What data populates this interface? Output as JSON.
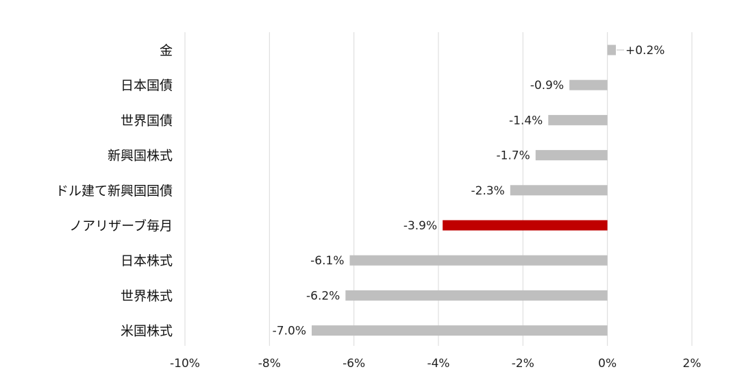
{
  "chart_data": {
    "type": "bar",
    "orientation": "horizontal",
    "categories": [
      "金",
      "日本国債",
      "世界国債",
      "新興国株式",
      "ドル建て新興国国債",
      "ノアリザーブ毎月",
      "日本株式",
      "世界株式",
      "米国株式"
    ],
    "values": [
      0.2,
      -0.9,
      -1.4,
      -1.7,
      -2.3,
      -3.9,
      -6.1,
      -6.2,
      -7.0
    ],
    "value_labels": [
      "+0.2%",
      "-0.9%",
      "-1.4%",
      "-1.7%",
      "-2.3%",
      "-3.9%",
      "-6.1%",
      "-6.2%",
      "-7.0%"
    ],
    "highlight_index": 5,
    "colors": {
      "default": "#bfbfbf",
      "highlight": "#c00000"
    },
    "xlim": [
      -10,
      2
    ],
    "xticks": [
      -10,
      -8,
      -6,
      -4,
      -2,
      0,
      2
    ],
    "xtick_labels": [
      "-10%",
      "-8%",
      "-6%",
      "-4%",
      "-2%",
      "0%",
      "2%"
    ],
    "grid": "vertical",
    "legend": "none"
  }
}
